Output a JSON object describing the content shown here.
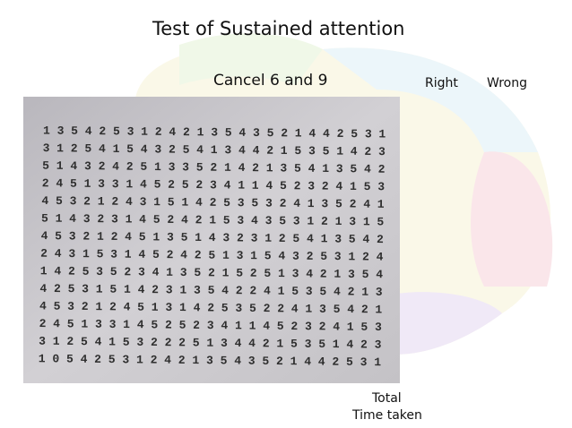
{
  "header": {
    "title": "Test of Sustained attention",
    "instruction": "Cancel 6 and 9"
  },
  "score": {
    "right": "Right",
    "wrong": "Wrong",
    "total": "Total",
    "time_taken": "Time taken"
  },
  "worksheet": {
    "rows": [
      "1 3 5 4 2 5 3 1 2 4 2 1 3 5 4 3 5 2 1 4 4 2 5 3 1",
      "3 1 2 5 4 1 5 4 3 2 5 4 1 3 4 4 2 1 5 3 5 1 4 2 3",
      "5 1 4 3 2 4 2 5 1 3 3 5 2 1 4 2 1 3 5 4 1 3 5 4 2",
      "2 4 5 1 3 3 1 4 5 2 5 2 3 4 1 1 4 5 2 3 2 4 1 5 3",
      "4 5 3 2 1 2 4 3 1 5 1 4 2 5 3 5 3 2 4 1 3 5 2 4 1",
      "5 1 4 3 2 3 1 4 5 2 4 2 1 5 3 4 3 5 3 1 2 1 3 1 5",
      "4 5 3 2 1 2 4 5 1 3 5 1 4 3 2 3 1 2 5 4 1 3 5 4 2",
      "2 4 3 1 5 3 1 4 5 2 4 2 5 1 3 1 5 4 3 2 5 3 1 2 4",
      "1 4 2 5 3 5 2 3 4 1 3 5 2 1 5 2 5 1 3 4 2 1 3 5 4",
      "4 2 5 3 1 5 1 4 2 3 1 3 5 4 2 2 4 1 5 3 5 4 2 1 3",
      "4 5 3 2 1 2 4 5 1 3 1 4 2 5 3 5 2 2 4 1 3 5 4 2 1",
      "2 4 5 1 3 3 1 4 5 2 5 2 3 4 1 1 4 5 2 3 2 4 1 5 3",
      "3 1 2 5 4 1 5 3 2 2 2 5 1 3 4 4 2 1 5 3 5 1 4 2 3",
      "1 0 5 4 2 5 3 1 2 4 2 1 3 5 4 3 5 2 1 4 4 2 5 3 1"
    ]
  }
}
